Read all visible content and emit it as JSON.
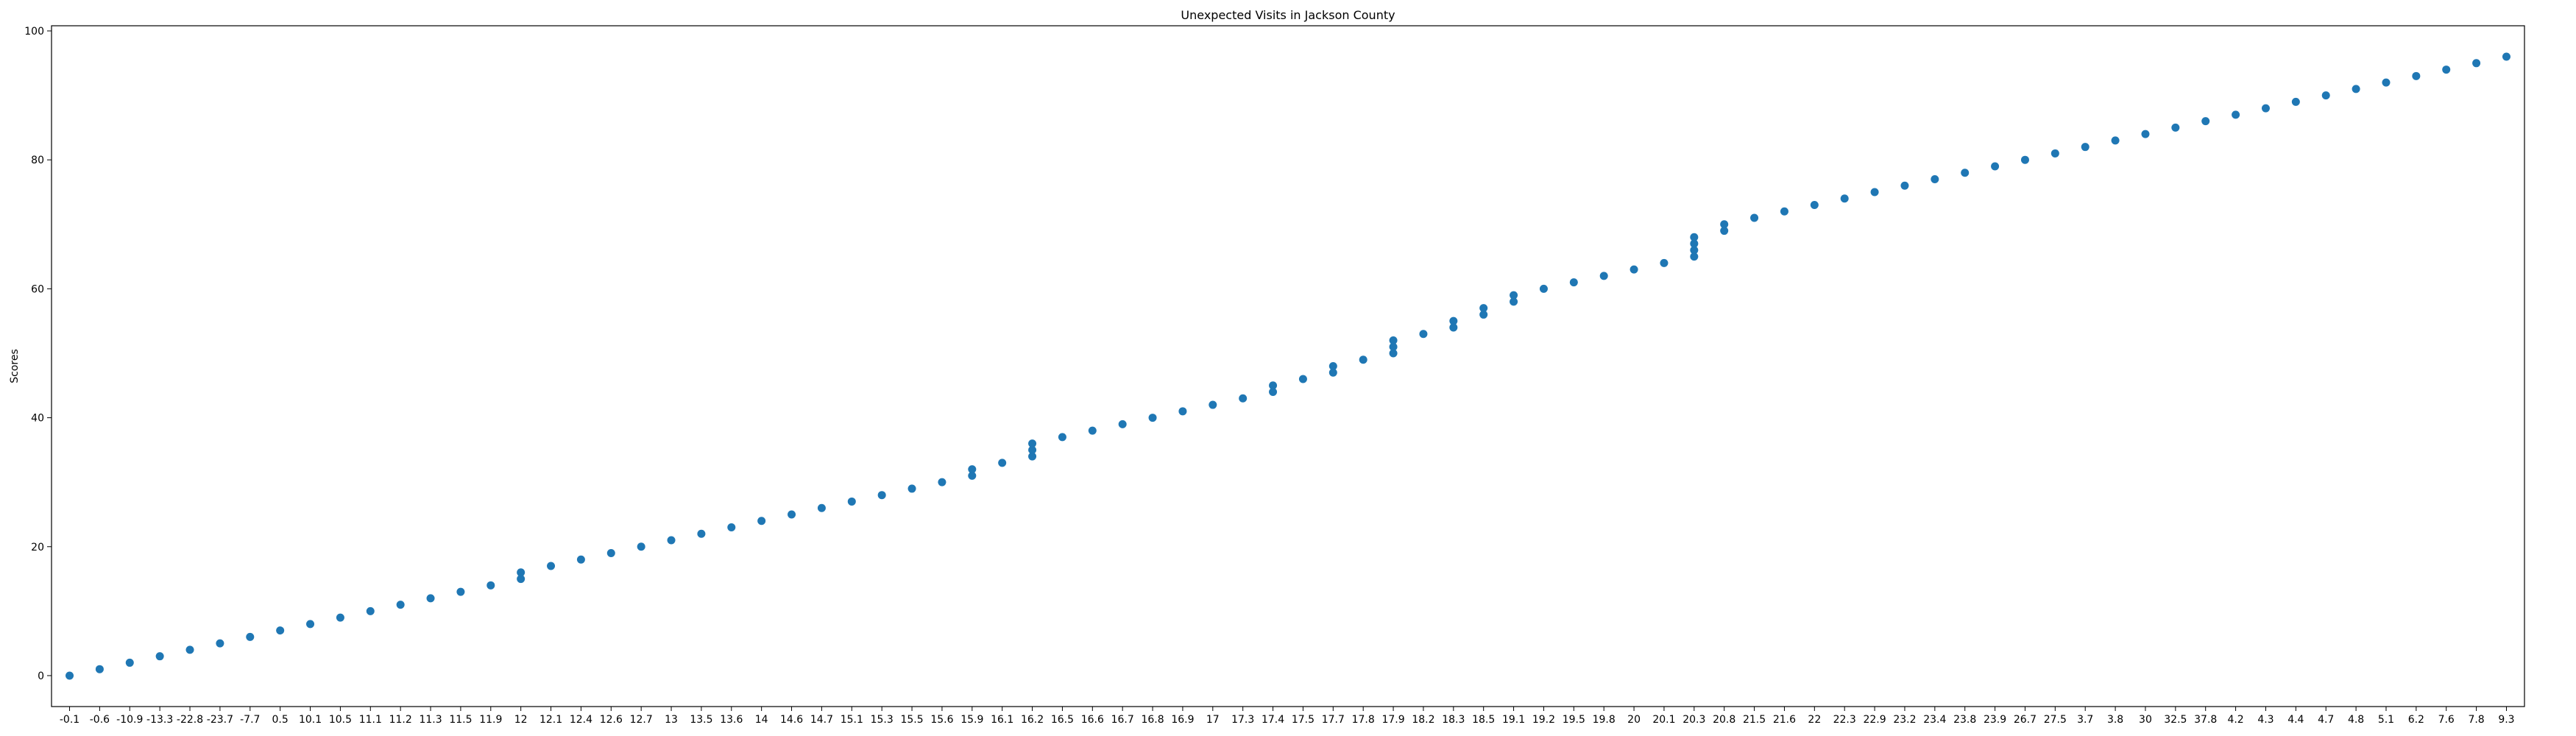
{
  "chart_data": {
    "type": "scatter",
    "title": "Unexpected Visits in Jackson County",
    "xlabel": "",
    "ylabel": "Scores",
    "categories": [
      "-0.1",
      "-0.6",
      "-10.9",
      "-13.3",
      "-22.8",
      "-23.7",
      "-7.7",
      "0.5",
      "10.1",
      "10.5",
      "11.1",
      "11.2",
      "11.3",
      "11.5",
      "11.9",
      "12",
      "12.1",
      "12.4",
      "12.6",
      "12.7",
      "13",
      "13.5",
      "13.6",
      "14",
      "14.6",
      "14.7",
      "15.1",
      "15.3",
      "15.5",
      "15.6",
      "15.9",
      "16.1",
      "16.2",
      "16.5",
      "16.6",
      "16.7",
      "16.8",
      "16.9",
      "17",
      "17.3",
      "17.4",
      "17.5",
      "17.7",
      "17.8",
      "17.9",
      "18.2",
      "18.3",
      "18.5",
      "19.1",
      "19.2",
      "19.5",
      "19.8",
      "20",
      "20.1",
      "20.3",
      "20.8",
      "21.5",
      "21.6",
      "22",
      "22.3",
      "22.9",
      "23.2",
      "23.4",
      "23.8",
      "23.9",
      "26.7",
      "27.5",
      "3.7",
      "3.8",
      "30",
      "32.5",
      "37.8",
      "4.2",
      "4.3",
      "4.4",
      "4.7",
      "4.8",
      "5.1",
      "6.2",
      "7.6",
      "7.8",
      "9.3"
    ],
    "points": [
      {
        "x": "-0.1",
        "y": 0
      },
      {
        "x": "-0.6",
        "y": 1
      },
      {
        "x": "-10.9",
        "y": 2
      },
      {
        "x": "-13.3",
        "y": 3
      },
      {
        "x": "-22.8",
        "y": 4
      },
      {
        "x": "-23.7",
        "y": 5
      },
      {
        "x": "-7.7",
        "y": 6
      },
      {
        "x": "0.5",
        "y": 7
      },
      {
        "x": "10.1",
        "y": 8
      },
      {
        "x": "10.5",
        "y": 9
      },
      {
        "x": "11.1",
        "y": 10
      },
      {
        "x": "11.2",
        "y": 11
      },
      {
        "x": "11.3",
        "y": 12
      },
      {
        "x": "11.5",
        "y": 13
      },
      {
        "x": "11.9",
        "y": 14
      },
      {
        "x": "12",
        "y": 15
      },
      {
        "x": "12",
        "y": 16
      },
      {
        "x": "12.1",
        "y": 17
      },
      {
        "x": "12.4",
        "y": 18
      },
      {
        "x": "12.6",
        "y": 19
      },
      {
        "x": "12.7",
        "y": 20
      },
      {
        "x": "13",
        "y": 21
      },
      {
        "x": "13.5",
        "y": 22
      },
      {
        "x": "13.6",
        "y": 23
      },
      {
        "x": "14",
        "y": 24
      },
      {
        "x": "14.6",
        "y": 25
      },
      {
        "x": "14.7",
        "y": 26
      },
      {
        "x": "15.1",
        "y": 27
      },
      {
        "x": "15.3",
        "y": 28
      },
      {
        "x": "15.5",
        "y": 29
      },
      {
        "x": "15.6",
        "y": 30
      },
      {
        "x": "15.9",
        "y": 31
      },
      {
        "x": "15.9",
        "y": 32
      },
      {
        "x": "16.1",
        "y": 33
      },
      {
        "x": "16.2",
        "y": 34
      },
      {
        "x": "16.2",
        "y": 35
      },
      {
        "x": "16.2",
        "y": 36
      },
      {
        "x": "16.5",
        "y": 37
      },
      {
        "x": "16.6",
        "y": 38
      },
      {
        "x": "16.7",
        "y": 39
      },
      {
        "x": "16.8",
        "y": 40
      },
      {
        "x": "16.9",
        "y": 41
      },
      {
        "x": "17",
        "y": 42
      },
      {
        "x": "17.3",
        "y": 43
      },
      {
        "x": "17.4",
        "y": 44
      },
      {
        "x": "17.4",
        "y": 45
      },
      {
        "x": "17.5",
        "y": 46
      },
      {
        "x": "17.7",
        "y": 47
      },
      {
        "x": "17.7",
        "y": 48
      },
      {
        "x": "17.8",
        "y": 49
      },
      {
        "x": "17.9",
        "y": 50
      },
      {
        "x": "17.9",
        "y": 51
      },
      {
        "x": "17.9",
        "y": 52
      },
      {
        "x": "18.2",
        "y": 53
      },
      {
        "x": "18.3",
        "y": 54
      },
      {
        "x": "18.3",
        "y": 55
      },
      {
        "x": "18.5",
        "y": 56
      },
      {
        "x": "18.5",
        "y": 57
      },
      {
        "x": "19.1",
        "y": 58
      },
      {
        "x": "19.1",
        "y": 59
      },
      {
        "x": "19.2",
        "y": 60
      },
      {
        "x": "19.5",
        "y": 61
      },
      {
        "x": "19.8",
        "y": 62
      },
      {
        "x": "20",
        "y": 63
      },
      {
        "x": "20.1",
        "y": 64
      },
      {
        "x": "20.3",
        "y": 65
      },
      {
        "x": "20.3",
        "y": 66
      },
      {
        "x": "20.3",
        "y": 67
      },
      {
        "x": "20.3",
        "y": 68
      },
      {
        "x": "20.8",
        "y": 69
      },
      {
        "x": "20.8",
        "y": 70
      },
      {
        "x": "21.5",
        "y": 71
      },
      {
        "x": "21.6",
        "y": 72
      },
      {
        "x": "22",
        "y": 73
      },
      {
        "x": "22.3",
        "y": 74
      },
      {
        "x": "22.9",
        "y": 75
      },
      {
        "x": "23.2",
        "y": 76
      },
      {
        "x": "23.4",
        "y": 77
      },
      {
        "x": "23.8",
        "y": 78
      },
      {
        "x": "23.9",
        "y": 79
      },
      {
        "x": "26.7",
        "y": 80
      },
      {
        "x": "27.5",
        "y": 81
      },
      {
        "x": "3.7",
        "y": 82
      },
      {
        "x": "3.8",
        "y": 83
      },
      {
        "x": "30",
        "y": 84
      },
      {
        "x": "32.5",
        "y": 85
      },
      {
        "x": "37.8",
        "y": 86
      },
      {
        "x": "4.2",
        "y": 87
      },
      {
        "x": "4.3",
        "y": 88
      },
      {
        "x": "4.4",
        "y": 89
      },
      {
        "x": "4.7",
        "y": 90
      },
      {
        "x": "4.8",
        "y": 91
      },
      {
        "x": "5.1",
        "y": 92
      },
      {
        "x": "6.2",
        "y": 93
      },
      {
        "x": "7.6",
        "y": 94
      },
      {
        "x": "7.8",
        "y": 95
      },
      {
        "x": "9.3",
        "y": 96
      }
    ],
    "yticks": [
      0,
      20,
      40,
      60,
      80,
      100
    ],
    "ylim": [
      -4.8,
      100.8
    ],
    "grid": false,
    "legend": "none",
    "point_color": "#1f77b4"
  }
}
